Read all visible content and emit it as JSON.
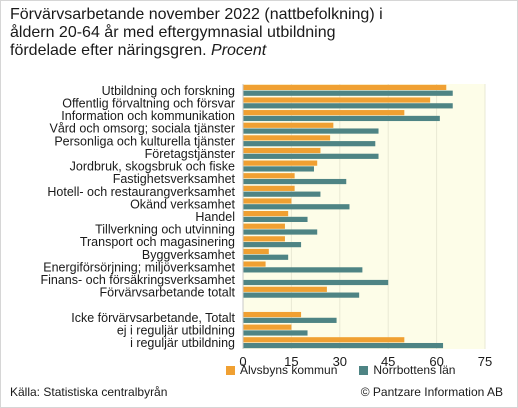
{
  "title": "Förvärvsarbetande november 2022 (nattbefolkning) i\nåldern 20-64 år med eftergymnasial utbildning\nfördelade efter näringsgren.",
  "unit": "Procent",
  "source": "Källa: Statistiska centralbyrån",
  "copyright": "© Pantzare Information AB",
  "colors": {
    "orange": "#f0a032",
    "teal": "#4e8484",
    "plot_bg": "#fdfde8",
    "grid": "#e9e9d4"
  },
  "chart_data": {
    "type": "bar",
    "orientation": "horizontal",
    "categories": [
      "Utbildning och forskning",
      "Offentlig förvaltning och försvar",
      "Information och kommunikation",
      "Vård och omsorg; sociala tjänster",
      "Personliga och kulturella tjänster",
      "Företagstjänster",
      "Jordbruk, skogsbruk och fiske",
      "Fastighetsverksamhet",
      "Hotell- och restaurangverksamhet",
      "Okänd verksamhet",
      "Handel",
      "Tillverkning och utvinning",
      "Transport och magasinering",
      "Byggverksamhet",
      "Energiförsörjning; miljöverksamhet",
      "Finans- och försäkringsverksamhet",
      "Förvärvsarbetande totalt",
      "",
      "Icke förvärvsarbetande, Totalt",
      "ej i reguljär utbildning",
      "i reguljär utbildning"
    ],
    "series": [
      {
        "name": "Älvsbyns kommun",
        "color": "#f0a032",
        "values": [
          63,
          58,
          50,
          28,
          27,
          24,
          23,
          16,
          16,
          15,
          14,
          13,
          13,
          8,
          7,
          null,
          26,
          null,
          18,
          15,
          50
        ]
      },
      {
        "name": "Norrbottens län",
        "color": "#4e8484",
        "values": [
          65,
          65,
          61,
          42,
          41,
          42,
          22,
          32,
          24,
          33,
          20,
          23,
          18,
          14,
          37,
          45,
          36,
          null,
          29,
          20,
          62
        ]
      }
    ],
    "xlim": [
      0,
      75
    ],
    "xticks": [
      0,
      15,
      30,
      45,
      60,
      75
    ],
    "grid": true,
    "legend_position": "bottom"
  }
}
